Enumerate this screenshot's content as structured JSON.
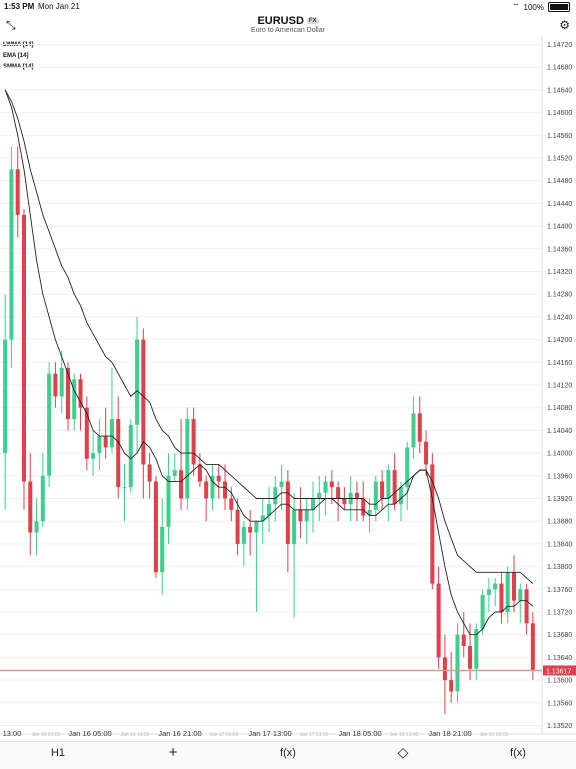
{
  "status_bar": {
    "time": "1:53 PM",
    "date": "Mon Jan 21",
    "battery": "100%"
  },
  "header": {
    "symbol": "EURUSD",
    "badge": "FX",
    "subtitle": "Euro to American Dollar",
    "collapse_icon": "collapse-arrows-icon",
    "settings_icon": "gear-icon"
  },
  "indicators": [
    "LWMA [14]",
    "EMA [14]",
    "SMMA [14]"
  ],
  "colors": {
    "up": "#3ecf8e",
    "down": "#e0404a",
    "current_price_line": "#c9a08a",
    "price_tag": "#e0404a"
  },
  "current_price": "1.13617",
  "toolbar": {
    "timeframe": "H1",
    "add": "+",
    "functions": "f(x)",
    "drawing_icon": "diamond-icon",
    "functions_settings": "f(x)"
  },
  "chart_data": {
    "type": "candlestick",
    "y_ticks": [
      "1.14720",
      "1.14680",
      "1.14640",
      "1.14600",
      "1.14560",
      "1.14520",
      "1.14480",
      "1.14440",
      "1.14400",
      "1.14360",
      "1.14320",
      "1.14280",
      "1.14240",
      "1.14200",
      "1.14160",
      "1.14120",
      "1.14080",
      "1.14040",
      "1.14000",
      "1.13960",
      "1.13920",
      "1.13880",
      "1.13840",
      "1.13800",
      "1.13760",
      "1.13720",
      "1.13680",
      "1.13640",
      "1.13600",
      "1.13560",
      "1.13520"
    ],
    "ylim": [
      1.13505,
      1.14735
    ],
    "x_labels": [
      "13:00",
      "Jan 16 05:00",
      "Jan 16 21:00",
      "Jan 17 13:00",
      "Jan 18 05:00",
      "Jan 18 21:00"
    ],
    "x_labels_faint": [
      "Jan 15 21:00",
      "Jan 16 13:00",
      "Jan 17 05:00",
      "Jan 17 21:00",
      "Jan 18 13:00",
      "Jan 21 05:00"
    ],
    "candles": [
      [
        1.14,
        1.1428,
        1.139,
        1.142
      ],
      [
        1.142,
        1.1454,
        1.1415,
        1.145
      ],
      [
        1.145,
        1.1454,
        1.1438,
        1.1442
      ],
      [
        1.1442,
        1.1443,
        1.139,
        1.1395
      ],
      [
        1.1395,
        1.14,
        1.1382,
        1.1386
      ],
      [
        1.1386,
        1.1392,
        1.1382,
        1.1388
      ],
      [
        1.1388,
        1.14,
        1.1387,
        1.1396
      ],
      [
        1.1396,
        1.1416,
        1.1394,
        1.1414
      ],
      [
        1.1414,
        1.1416,
        1.1408,
        1.141
      ],
      [
        1.141,
        1.1418,
        1.1407,
        1.1415
      ],
      [
        1.1415,
        1.1416,
        1.1404,
        1.1406
      ],
      [
        1.1406,
        1.1414,
        1.1404,
        1.1413
      ],
      [
        1.1413,
        1.1414,
        1.1404,
        1.1408
      ],
      [
        1.1408,
        1.141,
        1.1397,
        1.1399
      ],
      [
        1.1399,
        1.1404,
        1.1396,
        1.14
      ],
      [
        1.14,
        1.1406,
        1.1397,
        1.1403
      ],
      [
        1.1403,
        1.1408,
        1.1399,
        1.1401
      ],
      [
        1.1401,
        1.1415,
        1.14,
        1.1406
      ],
      [
        1.1406,
        1.141,
        1.1392,
        1.1394
      ],
      [
        1.1394,
        1.1398,
        1.1388,
        1.1394
      ],
      [
        1.1394,
        1.1406,
        1.1393,
        1.1405
      ],
      [
        1.1405,
        1.1424,
        1.14,
        1.142
      ],
      [
        1.142,
        1.1422,
        1.1392,
        1.1398
      ],
      [
        1.1398,
        1.14,
        1.1392,
        1.1395
      ],
      [
        1.1395,
        1.1396,
        1.1378,
        1.1379
      ],
      [
        1.1379,
        1.1392,
        1.1375,
        1.1387
      ],
      [
        1.1387,
        1.14,
        1.1384,
        1.1396
      ],
      [
        1.1396,
        1.14,
        1.1395,
        1.1397
      ],
      [
        1.1397,
        1.1406,
        1.139,
        1.1392
      ],
      [
        1.1392,
        1.1408,
        1.139,
        1.1406
      ],
      [
        1.1406,
        1.1408,
        1.1396,
        1.1398
      ],
      [
        1.1398,
        1.14,
        1.1394,
        1.1395
      ],
      [
        1.1395,
        1.1396,
        1.1388,
        1.1392
      ],
      [
        1.1392,
        1.1398,
        1.139,
        1.1396
      ],
      [
        1.1396,
        1.1398,
        1.1392,
        1.1395
      ],
      [
        1.1395,
        1.1398,
        1.139,
        1.1392
      ],
      [
        1.1392,
        1.1394,
        1.1388,
        1.139
      ],
      [
        1.139,
        1.1392,
        1.1382,
        1.1384
      ],
      [
        1.1384,
        1.1388,
        1.138,
        1.1387
      ],
      [
        1.1387,
        1.139,
        1.1382,
        1.1386
      ],
      [
        1.1386,
        1.1388,
        1.1372,
        1.1388
      ],
      [
        1.1388,
        1.1392,
        1.1384,
        1.1389
      ],
      [
        1.1389,
        1.1394,
        1.1386,
        1.1391
      ],
      [
        1.1391,
        1.1396,
        1.1388,
        1.1394
      ],
      [
        1.1394,
        1.1398,
        1.139,
        1.1395
      ],
      [
        1.1395,
        1.1397,
        1.1379,
        1.1384
      ],
      [
        1.1384,
        1.1393,
        1.1371,
        1.139
      ],
      [
        1.139,
        1.1394,
        1.1385,
        1.1388
      ],
      [
        1.1388,
        1.1392,
        1.1384,
        1.139
      ],
      [
        1.139,
        1.1395,
        1.1386,
        1.1392
      ],
      [
        1.1392,
        1.1396,
        1.1388,
        1.1393
      ],
      [
        1.1393,
        1.1396,
        1.1389,
        1.1395
      ],
      [
        1.1395,
        1.1397,
        1.1391,
        1.1394
      ],
      [
        1.1394,
        1.1395,
        1.1388,
        1.1392
      ],
      [
        1.1392,
        1.1394,
        1.139,
        1.1391
      ],
      [
        1.1391,
        1.1396,
        1.1388,
        1.1393
      ],
      [
        1.1393,
        1.1395,
        1.1388,
        1.1392
      ],
      [
        1.1392,
        1.1395,
        1.1388,
        1.1389
      ],
      [
        1.1389,
        1.1392,
        1.1386,
        1.139
      ],
      [
        1.139,
        1.1396,
        1.1388,
        1.1395
      ],
      [
        1.1395,
        1.1397,
        1.139,
        1.1392
      ],
      [
        1.1392,
        1.1398,
        1.1388,
        1.1397
      ],
      [
        1.1397,
        1.14,
        1.139,
        1.1391
      ],
      [
        1.1391,
        1.1395,
        1.1388,
        1.1394
      ],
      [
        1.1394,
        1.1402,
        1.139,
        1.1401
      ],
      [
        1.1401,
        1.141,
        1.1399,
        1.1407
      ],
      [
        1.1407,
        1.141,
        1.14,
        1.1402
      ],
      [
        1.1402,
        1.1404,
        1.1396,
        1.1398
      ],
      [
        1.1398,
        1.14,
        1.1376,
        1.1377
      ],
      [
        1.1377,
        1.138,
        1.1362,
        1.1364
      ],
      [
        1.1364,
        1.1368,
        1.1354,
        1.136
      ],
      [
        1.136,
        1.1365,
        1.1356,
        1.1358
      ],
      [
        1.1358,
        1.137,
        1.1356,
        1.1368
      ],
      [
        1.1368,
        1.1372,
        1.1364,
        1.1366
      ],
      [
        1.1366,
        1.137,
        1.136,
        1.1362
      ],
      [
        1.1362,
        1.137,
        1.136,
        1.1369
      ],
      [
        1.1369,
        1.1376,
        1.1368,
        1.1375
      ],
      [
        1.1375,
        1.1378,
        1.1372,
        1.1376
      ],
      [
        1.1376,
        1.1378,
        1.1373,
        1.1377
      ],
      [
        1.1377,
        1.1379,
        1.137,
        1.1372
      ],
      [
        1.1372,
        1.138,
        1.137,
        1.1379
      ],
      [
        1.1379,
        1.1382,
        1.1372,
        1.1374
      ],
      [
        1.1374,
        1.1377,
        1.137,
        1.1376
      ],
      [
        1.1376,
        1.1377,
        1.1368,
        1.137
      ],
      [
        1.137,
        1.1372,
        1.136,
        1.13617
      ]
    ],
    "lwma": [
      1.1464,
      1.1461,
      1.1456,
      1.145,
      1.1442,
      1.1434,
      1.1428,
      1.1424,
      1.142,
      1.1417,
      1.1414,
      1.1411,
      1.1409,
      1.1407,
      1.1404,
      1.1403,
      1.1403,
      1.1403,
      1.1402,
      1.14,
      1.1399,
      1.14,
      1.1402,
      1.1401,
      1.1399,
      1.1396,
      1.1395,
      1.1395,
      1.1395,
      1.1396,
      1.1397,
      1.1398,
      1.1397,
      1.1395,
      1.1394,
      1.1394,
      1.1393,
      1.1391,
      1.1389,
      1.1388,
      1.1388,
      1.1388,
      1.1389,
      1.139,
      1.1391,
      1.1391,
      1.139,
      1.139,
      1.139,
      1.139,
      1.1391,
      1.1392,
      1.1392,
      1.1391,
      1.139,
      1.139,
      1.139,
      1.139,
      1.1389,
      1.1389,
      1.139,
      1.1391,
      1.1391,
      1.1392,
      1.1393,
      1.1396,
      1.1397,
      1.1397,
      1.1392,
      1.1386,
      1.138,
      1.1375,
      1.1372,
      1.137,
      1.1368,
      1.1368,
      1.1369,
      1.1371,
      1.1372,
      1.1372,
      1.1373,
      1.1373,
      1.1374,
      1.1374,
      1.1373
    ],
    "ema": [
      1.1464,
      1.1462,
      1.1459,
      1.1455,
      1.145,
      1.1446,
      1.1442,
      1.1439,
      1.1436,
      1.1433,
      1.1431,
      1.1428,
      1.1426,
      1.1423,
      1.1421,
      1.1419,
      1.1417,
      1.1416,
      1.1414,
      1.1412,
      1.141,
      1.1411,
      1.141,
      1.1409,
      1.1406,
      1.1404,
      1.1403,
      1.1401,
      1.14,
      1.14,
      1.14,
      1.1399,
      1.1398,
      1.1398,
      1.1398,
      1.1397,
      1.1396,
      1.1395,
      1.1394,
      1.1393,
      1.1392,
      1.1392,
      1.1392,
      1.1392,
      1.1393,
      1.1393,
      1.1392,
      1.1392,
      1.1392,
      1.1392,
      1.1392,
      1.1392,
      1.1392,
      1.1392,
      1.1392,
      1.1392,
      1.1392,
      1.1392,
      1.1391,
      1.1391,
      1.1392,
      1.1392,
      1.1393,
      1.1394,
      1.1395,
      1.1396,
      1.1397,
      1.1397,
      1.1395,
      1.1392,
      1.1388,
      1.1385,
      1.1382,
      1.1381,
      1.138,
      1.1379,
      1.1379,
      1.1379,
      1.1379,
      1.1379,
      1.1379,
      1.1379,
      1.1379,
      1.1378,
      1.1377
    ]
  }
}
